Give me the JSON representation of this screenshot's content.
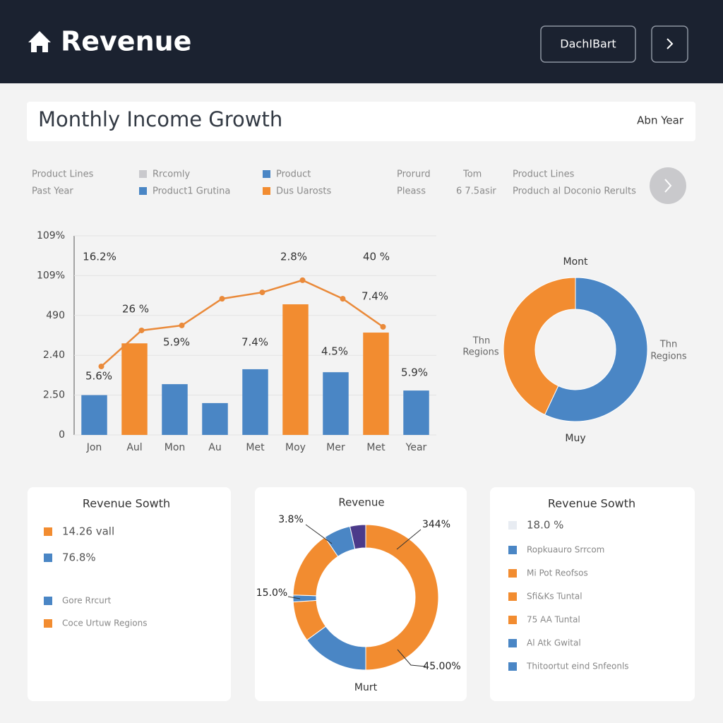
{
  "header": {
    "title": "Revenue",
    "button": "DachIBart"
  },
  "section": {
    "title": "Monthly Income Growth",
    "filter": "Abn Year"
  },
  "filters": [
    {
      "text": "Product Lines"
    },
    {
      "text": "Past Year"
    },
    {
      "text": "Rrcomly",
      "color": "#c9c9cd"
    },
    {
      "text": "Product1 Grutina",
      "color": "#4a86c5"
    },
    {
      "text": "Product",
      "color": "#4a86c5"
    },
    {
      "text": "Dus Uarosts",
      "color": "#f28c30"
    },
    {
      "text": "Prorurd"
    },
    {
      "text": "Pleass"
    },
    {
      "text": "Tom"
    },
    {
      "text": "6 7.5asir"
    },
    {
      "text": "Product Lines"
    },
    {
      "text": "Produch al Doconio Rerults"
    }
  ],
  "chart_data": [
    {
      "type": "bar",
      "categories": [
        "Jon",
        "Aul",
        "Mon",
        "Au",
        "Met",
        "Moy",
        "Mer",
        "Met",
        "Year"
      ],
      "series": [
        {
          "type": "bar",
          "color": "#4a86c5",
          "highlight_color": "#f28c30",
          "values": [
            20,
            46,
            25.5,
            16,
            33,
            65.6,
            31.5,
            51.4,
            22.3
          ]
        },
        {
          "type": "line",
          "color": "#ea8a3a",
          "values": [
            34.4,
            52.5,
            55,
            68.4,
            71.6,
            77.7,
            68.4,
            54.3,
            null
          ]
        }
      ],
      "ylim": [
        0,
        100
      ],
      "yticks": [
        0,
        {
          "value": 20,
          "label": "2.50"
        },
        {
          "value": 40,
          "label": "2.40"
        },
        {
          "value": 60,
          "label": "490"
        },
        {
          "value": 80,
          "label": "109%"
        },
        {
          "value": 100,
          "label": "109%"
        }
      ],
      "grid": true,
      "annotations": [
        "16.2%",
        "2.8%",
        "40 %",
        "26 %",
        "7.4%",
        "5.9%",
        "7.4%",
        "4.5%",
        "5.6%",
        "5.9%"
      ]
    },
    {
      "type": "pie",
      "title": "Mont",
      "footer": "Muy",
      "values": [
        57,
        43
      ],
      "colors": [
        "#4a86c5",
        "#f28c30"
      ],
      "side_labels": [
        [
          "Thn",
          "Regions"
        ],
        [
          "Thn",
          "Regions"
        ]
      ]
    },
    {
      "type": "pie",
      "title": "Revenue",
      "footer": "Murt",
      "values": [
        50,
        15,
        9,
        1.5,
        15,
        6,
        3.5
      ],
      "colors": [
        "#f28c30",
        "#4a86c5",
        "#f28c30",
        "#4a86c5",
        "#f28c30",
        "#4a86c5",
        "#4b3a8a"
      ],
      "annotations": [
        "3.8%",
        "15.0%",
        "344%",
        "45.00%"
      ]
    }
  ],
  "cards": [
    {
      "title": "Revenue Sowth",
      "items": [
        {
          "text": "14.26 vall",
          "color": "#f28c30"
        },
        {
          "text": "76.8%",
          "color": "#4a86c5"
        },
        {
          "text": "Gore Rrcurt",
          "color": "#4a86c5"
        },
        {
          "text": "Coce Urtuw Regions",
          "color": "#f28c30"
        }
      ]
    },
    {
      "title": "Revenue Sowth",
      "items": [
        {
          "text": "18.0 %",
          "color": "#e8ecf2"
        },
        {
          "text": "Ropkuauro Srrcom",
          "color": "#4a86c5"
        },
        {
          "text": "Mi Pot Reofsos",
          "color": "#f28c30"
        },
        {
          "text": "Sfi&Ks Tuntal",
          "color": "#f28c30"
        },
        {
          "text": "75 AA Tuntal",
          "color": "#f28c30"
        },
        {
          "text": "Al Atk Gwital",
          "color": "#4a86c5"
        },
        {
          "text": "Thitoortut eind Snfeonls",
          "color": "#4a86c5"
        }
      ]
    }
  ]
}
